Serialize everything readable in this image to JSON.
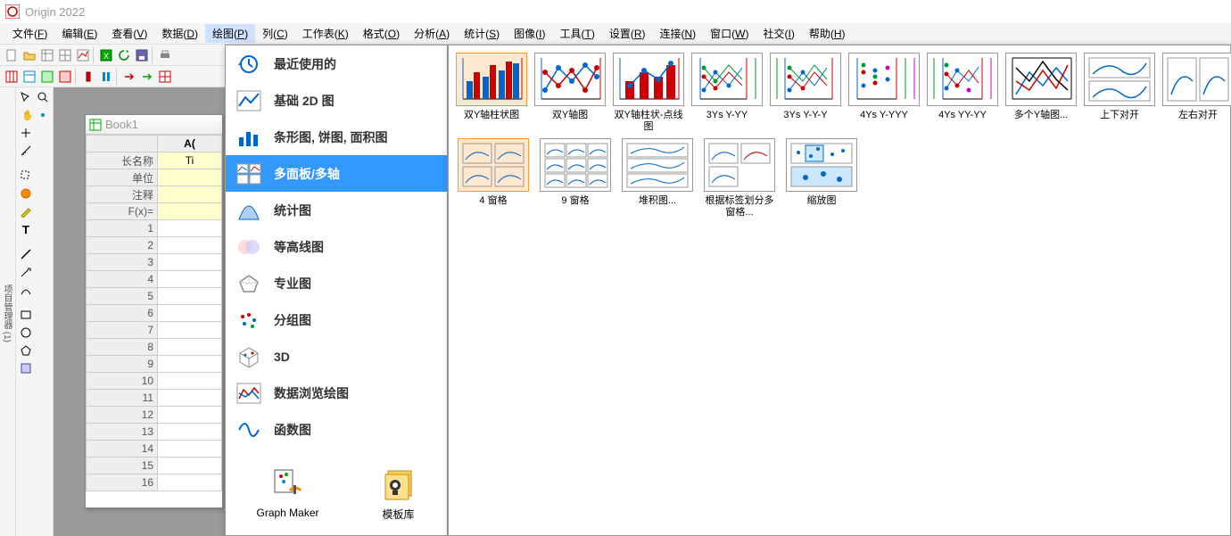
{
  "title": "Origin 2022",
  "menu": [
    {
      "label": "文件",
      "key": "F"
    },
    {
      "label": "编辑",
      "key": "E"
    },
    {
      "label": "查看",
      "key": "V"
    },
    {
      "label": "数据",
      "key": "D"
    },
    {
      "label": "绘图",
      "key": "P",
      "active": true
    },
    {
      "label": "列",
      "key": "C"
    },
    {
      "label": "工作表",
      "key": "K"
    },
    {
      "label": "格式",
      "key": "O"
    },
    {
      "label": "分析",
      "key": "A"
    },
    {
      "label": "统计",
      "key": "S"
    },
    {
      "label": "图像",
      "key": "I"
    },
    {
      "label": "工具",
      "key": "T"
    },
    {
      "label": "设置",
      "key": "R"
    },
    {
      "label": "连接",
      "key": "N"
    },
    {
      "label": "窗口",
      "key": "W"
    },
    {
      "label": "社交",
      "key": "I"
    },
    {
      "label": "帮助",
      "key": "H"
    }
  ],
  "side_tabs": [
    "项目管理器 (1)",
    "消息日志",
    "提示日志"
  ],
  "book": {
    "title": "Book1",
    "col_header": "A(",
    "row_headers": [
      "长名称",
      "单位",
      "注释",
      "F(x)=",
      "1",
      "2",
      "3",
      "4",
      "5",
      "6",
      "7",
      "8",
      "9",
      "10",
      "11",
      "12",
      "13",
      "14",
      "15",
      "16"
    ],
    "first_cell": "Ti"
  },
  "plot_categories": [
    {
      "label": "最近使用的",
      "icon": "recent"
    },
    {
      "label": "基础 2D 图",
      "icon": "line2d"
    },
    {
      "label": "条形图, 饼图, 面积图",
      "icon": "bars"
    },
    {
      "label": "多面板/多轴",
      "icon": "multi",
      "selected": true
    },
    {
      "label": "统计图",
      "icon": "stat"
    },
    {
      "label": "等高线图",
      "icon": "contour"
    },
    {
      "label": "专业图",
      "icon": "special"
    },
    {
      "label": "分组图",
      "icon": "group"
    },
    {
      "label": "3D",
      "icon": "3d"
    },
    {
      "label": "数据浏览绘图",
      "icon": "browse"
    },
    {
      "label": "函数图",
      "icon": "func"
    }
  ],
  "plot_bottom": [
    {
      "label": "Graph Maker",
      "icon": "maker"
    },
    {
      "label": "模板库",
      "icon": "template"
    }
  ],
  "gallery_row1": [
    {
      "label": "双Y轴柱状图",
      "thumb": "double-y-bar",
      "selected": true
    },
    {
      "label": "双Y轴图",
      "thumb": "double-y"
    },
    {
      "label": "双Y轴柱状-点线图",
      "thumb": "double-y-bar-line"
    },
    {
      "label": "3Ys Y-YY",
      "thumb": "3ys-1"
    },
    {
      "label": "3Ys Y-Y-Y",
      "thumb": "3ys-2"
    },
    {
      "label": "4Ys Y-YYY",
      "thumb": "4ys-1"
    },
    {
      "label": "4Ys YY-YY",
      "thumb": "4ys-2"
    },
    {
      "label": "多个Y轴图...",
      "thumb": "multi-y"
    },
    {
      "label": "上下对开",
      "thumb": "vertical-2"
    },
    {
      "label": "左右对开",
      "thumb": "horizontal-2"
    }
  ],
  "gallery_row2": [
    {
      "label": "4 窗格",
      "thumb": "4panel"
    },
    {
      "label": "9 窗格",
      "thumb": "9panel"
    },
    {
      "label": "堆积图...",
      "thumb": "stack"
    },
    {
      "label": "根据标签划分多窗格...",
      "thumb": "trellis"
    },
    {
      "label": "缩放图",
      "thumb": "zoom"
    }
  ],
  "colors": {
    "blue": "#0066cc",
    "red": "#cc0000",
    "green": "#009933",
    "orange": "#ff9900",
    "accent": "#3399ff"
  }
}
